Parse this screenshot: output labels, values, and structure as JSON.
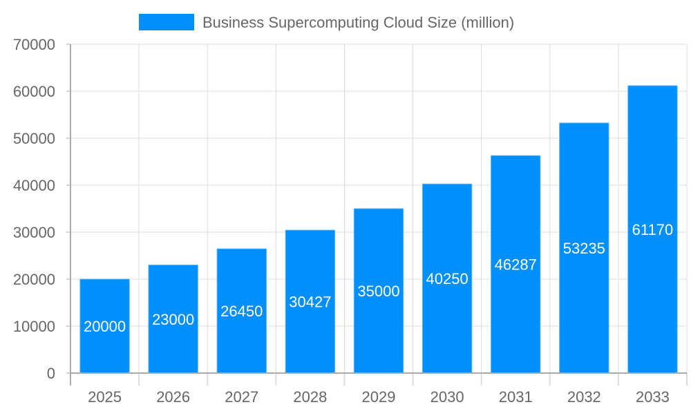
{
  "chart_data": {
    "type": "bar",
    "title": "",
    "xlabel": "",
    "ylabel": "",
    "categories": [
      "2025",
      "2026",
      "2027",
      "2028",
      "2029",
      "2030",
      "2031",
      "2032",
      "2033"
    ],
    "series": [
      {
        "name": "Business Supercomputing Cloud Size (million)",
        "values": [
          20000,
          23000,
          26450,
          30427,
          35000,
          40250,
          46287,
          53235,
          61170
        ]
      }
    ],
    "ylim": [
      0,
      70000
    ],
    "yticks": [
      0,
      10000,
      20000,
      30000,
      40000,
      50000,
      60000,
      70000
    ],
    "grid": true,
    "legend": "top",
    "data_labels": true,
    "colors": {
      "bar": "#008FFB",
      "bar_border": "#5CB5FF",
      "text": "#666666",
      "grid": "#DDDDDD",
      "axis": "#AAAAAA",
      "label": "#FFFFFF"
    }
  }
}
